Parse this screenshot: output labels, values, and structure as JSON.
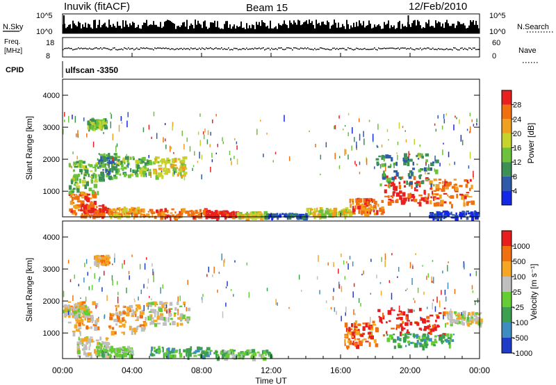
{
  "header": {
    "site": "Inuvik (fitACF)",
    "beam": "Beam 15",
    "date": "12/Feb/2010"
  },
  "top_panels": {
    "nsky_label": "N.Sky",
    "nsky_ticks": [
      "10^5",
      "10^0"
    ],
    "nsearch_label": "N.Search",
    "nsearch_ticks": [
      "10^5",
      "10^0"
    ],
    "freq_label_1": "Freq.",
    "freq_label_2": "[MHz]",
    "freq_ticks": [
      "18",
      "8"
    ],
    "nave_label": "Nave",
    "nave_ticks": [
      "60",
      "0"
    ],
    "cpid_label": "CPID",
    "cpid_value": "ulfscan  -3350"
  },
  "chart_data": [
    {
      "type": "heatmap",
      "name": "power",
      "ylabel": "Slant Range [km]",
      "ylim": [
        200,
        4500
      ],
      "yticks": [
        1000,
        2000,
        3000,
        4000
      ],
      "xlim": [
        0,
        24
      ],
      "colorbar_label": "Power [dB]",
      "colorbar_ticks": [
        "28",
        "24",
        "20",
        "16",
        "12",
        "8",
        "4"
      ],
      "colorbar_colors": [
        "#1428e6",
        "#2f5aa8",
        "#3c8f55",
        "#6cc23c",
        "#c8d22c",
        "#f0a020",
        "#f07010",
        "#e82020"
      ],
      "regions_hours_km_level": [
        [
          0.3,
          1.8,
          300,
          1000,
          6
        ],
        [
          1.0,
          2.6,
          250,
          600,
          7
        ],
        [
          2.6,
          4.6,
          250,
          520,
          5
        ],
        [
          4.6,
          8.2,
          220,
          480,
          6
        ],
        [
          8.2,
          10.0,
          220,
          420,
          7
        ],
        [
          10.0,
          11.6,
          220,
          380,
          4
        ],
        [
          11.6,
          14.0,
          220,
          330,
          1
        ],
        [
          14.0,
          16.5,
          250,
          500,
          4
        ],
        [
          16.5,
          18.4,
          300,
          800,
          6
        ],
        [
          18.4,
          21.0,
          650,
          1500,
          7
        ],
        [
          21.0,
          23.5,
          600,
          1400,
          6
        ],
        [
          0.3,
          2.0,
          1000,
          2000,
          3
        ],
        [
          2.0,
          3.0,
          1400,
          2200,
          2
        ],
        [
          3.0,
          5.0,
          1500,
          2100,
          3
        ],
        [
          5.2,
          7.0,
          1500,
          2100,
          4
        ],
        [
          1.4,
          2.4,
          3000,
          3300,
          3
        ],
        [
          18.0,
          21.5,
          1200,
          2200,
          2
        ],
        [
          21.0,
          23.8,
          200,
          400,
          0
        ]
      ]
    },
    {
      "type": "heatmap",
      "name": "velocity",
      "ylabel": "Slant Range [km]",
      "ylim": [
        200,
        4500
      ],
      "yticks": [
        1000,
        2000,
        3000,
        4000
      ],
      "xlim": [
        0,
        24
      ],
      "xticks": [
        "00:00",
        "04:00",
        "08:00",
        "12:00",
        "16:00",
        "20:00",
        "00:00"
      ],
      "xlabel": "Time UT",
      "colorbar_label": "Velocity [m s⁻¹]",
      "colorbar_ticks": [
        "1000",
        "500",
        "100",
        "25",
        "-25",
        "-100",
        "-500",
        "-1000"
      ],
      "colorbar_colors": [
        "#1e3cc8",
        "#3f8cc0",
        "#3ca050",
        "#66cc33",
        "#bfbfbf",
        "#f5a623",
        "#f07010",
        "#e81e1e"
      ],
      "regions_hours_km_level": [
        [
          0.3,
          2.0,
          1000,
          2000,
          5
        ],
        [
          0.8,
          2.6,
          300,
          900,
          4
        ],
        [
          2.6,
          4.8,
          1000,
          1900,
          5
        ],
        [
          2.0,
          4.0,
          300,
          600,
          3
        ],
        [
          4.8,
          7.2,
          1300,
          2000,
          4
        ],
        [
          5.0,
          8.5,
          300,
          600,
          2
        ],
        [
          8.5,
          12.0,
          250,
          500,
          3
        ],
        [
          16.2,
          18.0,
          600,
          1400,
          6
        ],
        [
          18.0,
          22.0,
          900,
          1800,
          7
        ],
        [
          18.6,
          22.5,
          600,
          1000,
          2
        ],
        [
          22.0,
          24.0,
          1300,
          1700,
          4
        ],
        [
          0.0,
          1.4,
          1500,
          1900,
          4
        ],
        [
          1.8,
          2.6,
          3200,
          3450,
          5
        ]
      ]
    }
  ]
}
